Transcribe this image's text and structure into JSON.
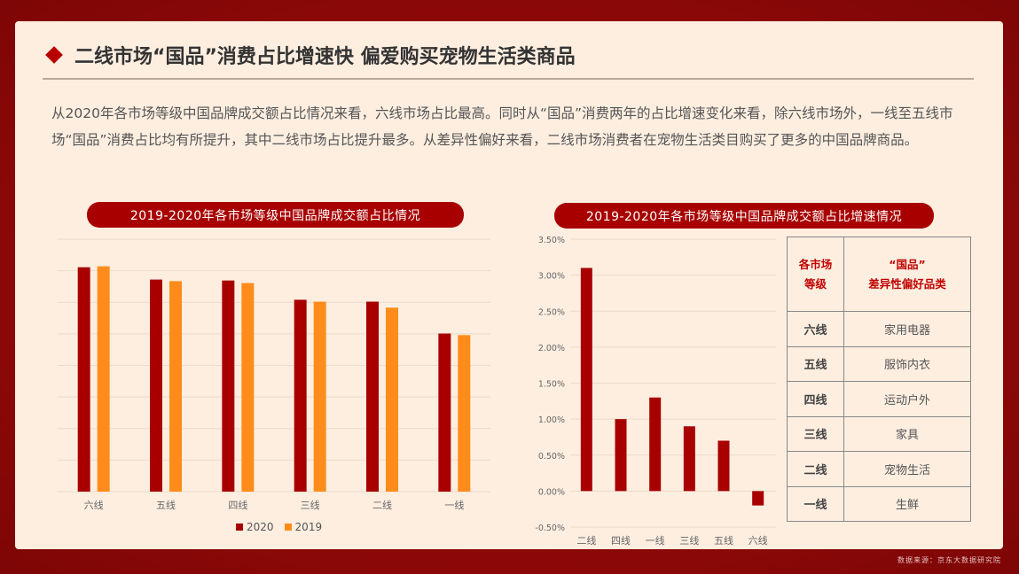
{
  "title": "二线市场“国品”消费占比增速快 偏爱购买宠物生活类商品",
  "paragraph": "从2020年各市场等级中国品牌成交额占比情况来看，六线市场占比最高。同时从“国品”消费两年的占比增速变化来看，除六线市场外，一线至五线市场“国品”消费占比均有所提升，其中二线市场占比提升最多。从差异性偏好来看，二线市场消费者在宠物生活类目购买了更多的中国品牌商品。",
  "source": "数据来源：京东大数据研究院",
  "table": {
    "header": [
      "各市场\n等级",
      "“国品”\n差异性偏好品类"
    ],
    "rows": [
      [
        "六线",
        "家用电器"
      ],
      [
        "五线",
        "服饰内衣"
      ],
      [
        "四线",
        "运动户外"
      ],
      [
        "三线",
        "家具"
      ],
      [
        "二线",
        "宠物生活"
      ],
      [
        "一线",
        "生鲜"
      ]
    ]
  },
  "colors": {
    "c2020": "#a80000",
    "c2019": "#ff8c1a",
    "growth": "#a80000"
  },
  "chart_data": [
    {
      "type": "bar",
      "title": "2019-2020年各市场等级中国品牌成交额占比情况",
      "categories": [
        "六线",
        "五线",
        "四线",
        "三线",
        "二线",
        "一线"
      ],
      "series": [
        {
          "name": "2020",
          "values": [
            7.11,
            6.72,
            6.69,
            6.08,
            6.02,
            5.01
          ]
        },
        {
          "name": "2019",
          "values": [
            7.14,
            6.67,
            6.61,
            6.02,
            5.83,
            4.96
          ]
        }
      ],
      "ylim": [
        0,
        8
      ],
      "grid": true,
      "y_tick_labels_shown": false,
      "legend": "bottom"
    },
    {
      "type": "bar",
      "title": "2019-2020年各市场等级中国品牌成交额占比增速情况",
      "categories": [
        "二线",
        "四线",
        "一线",
        "三线",
        "五线",
        "六线"
      ],
      "values": [
        3.1,
        1.0,
        1.3,
        0.9,
        0.7,
        -0.2
      ],
      "ylim": [
        -0.5,
        3.5
      ],
      "yticks": [
        "3.50%",
        "3.00%",
        "2.50%",
        "2.00%",
        "1.50%",
        "1.00%",
        "0.50%",
        "0.00%",
        "-0.50%"
      ],
      "grid": true
    }
  ]
}
